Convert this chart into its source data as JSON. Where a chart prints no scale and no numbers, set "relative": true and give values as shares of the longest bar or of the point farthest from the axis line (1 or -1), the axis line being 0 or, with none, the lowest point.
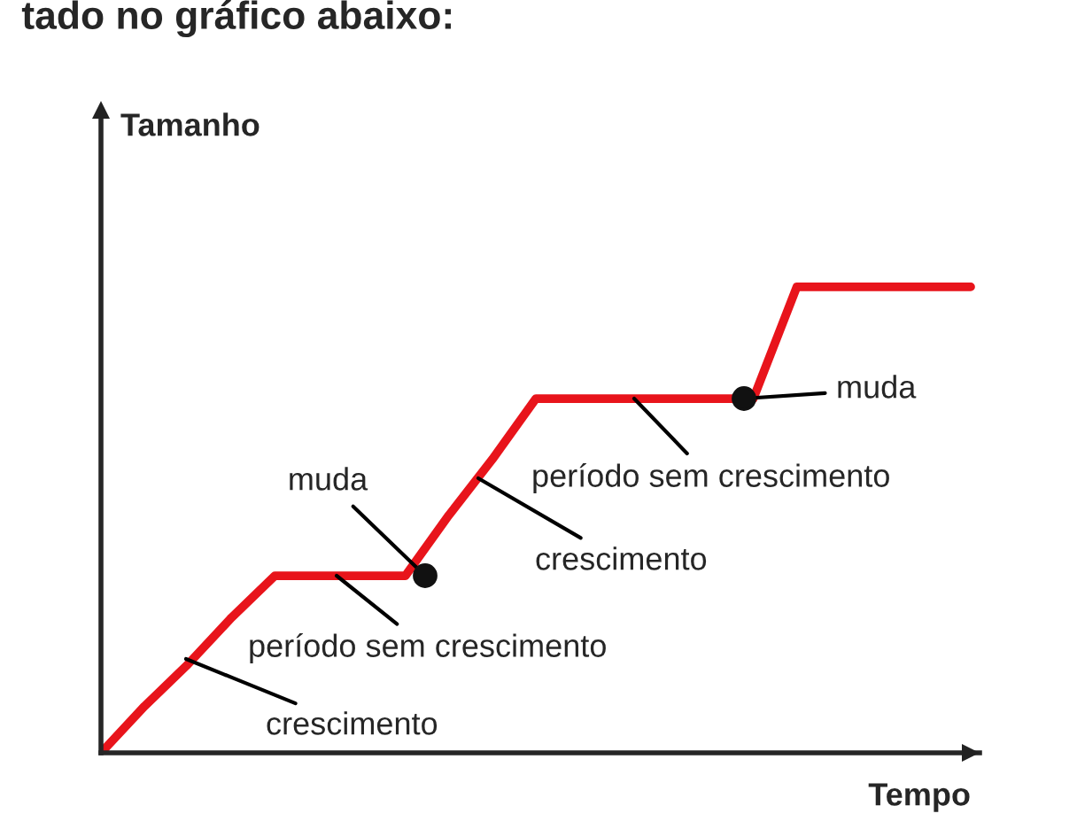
{
  "chart_data": {
    "type": "line",
    "relative": true,
    "title": "tado no gráfico abaixo:",
    "xlabel": "Tempo",
    "ylabel": "Tamanho",
    "categories": [
      null,
      null,
      null,
      null,
      null,
      null,
      null,
      null,
      null,
      null,
      null,
      null,
      null,
      null,
      null,
      null,
      null,
      null,
      null,
      null,
      null
    ],
    "series": [
      {
        "color": "#e8141b",
        "values": [
          0,
          0.1,
          0.19,
          0.29,
          0.38,
          0.38,
          0.38,
          0.38,
          0.51,
          0.63,
          0.76,
          0.76,
          0.76,
          0.76,
          0.76,
          0.76,
          1,
          1,
          1,
          1,
          1
        ]
      }
    ],
    "annotations": [
      "crescimento",
      "período sem crescimento",
      "muda",
      "crescimento",
      "período sem crescimento",
      "muda"
    ]
  }
}
